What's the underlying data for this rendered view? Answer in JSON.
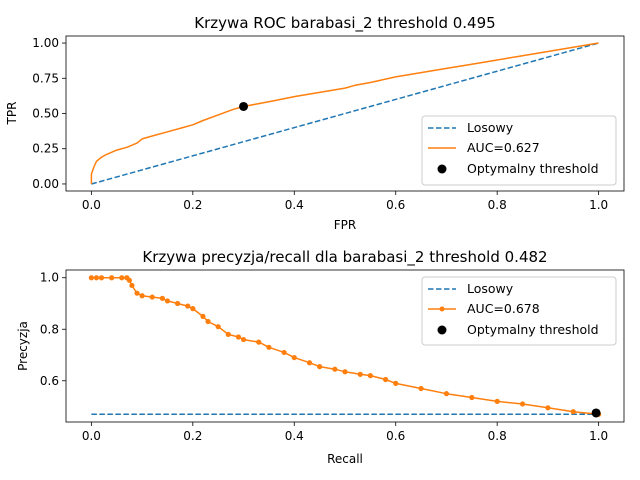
{
  "chart_data": [
    {
      "type": "line",
      "title": "Krzywa ROC barabasi_2 threshold  0.495",
      "xlabel": "FPR",
      "ylabel": "TPR",
      "xlim": [
        -0.05,
        1.05
      ],
      "ylim": [
        -0.05,
        1.05
      ],
      "xticks": [
        "0.0",
        "0.2",
        "0.4",
        "0.6",
        "0.8",
        "1.0"
      ],
      "yticks": [
        "0.00",
        "0.25",
        "0.50",
        "0.75",
        "1.00"
      ],
      "grid": false,
      "legend_position": "lower-right",
      "series": [
        {
          "name": "Losowy",
          "style": "dashed",
          "color": "#1f77b4",
          "x": [
            0,
            1
          ],
          "y": [
            0,
            1
          ]
        },
        {
          "name": "AUC=0.627",
          "style": "solid",
          "color": "#ff7f0e",
          "x": [
            0,
            0,
            0.005,
            0.01,
            0.02,
            0.03,
            0.05,
            0.07,
            0.09,
            0.1,
            0.12,
            0.15,
            0.18,
            0.2,
            0.22,
            0.25,
            0.28,
            0.3,
            0.33,
            0.36,
            0.4,
            0.45,
            0.5,
            0.52,
            0.55,
            0.6,
            0.65,
            0.7,
            0.75,
            0.8,
            0.85,
            0.9,
            0.95,
            1.0
          ],
          "y": [
            0,
            0.07,
            0.12,
            0.16,
            0.19,
            0.21,
            0.24,
            0.26,
            0.29,
            0.32,
            0.34,
            0.37,
            0.4,
            0.42,
            0.45,
            0.49,
            0.53,
            0.55,
            0.57,
            0.59,
            0.62,
            0.65,
            0.68,
            0.7,
            0.72,
            0.76,
            0.79,
            0.82,
            0.85,
            0.88,
            0.91,
            0.94,
            0.97,
            1.0
          ]
        }
      ],
      "point": {
        "name": "Optymalny threshold",
        "color": "#000000",
        "x": 0.3,
        "y": 0.55
      }
    },
    {
      "type": "line",
      "title": "Krzywa precyzja/recall dla barabasi_2 threshold  0.482",
      "xlabel": "Recall",
      "ylabel": "Precyzja",
      "xlim": [
        -0.05,
        1.05
      ],
      "ylim": [
        0.44,
        1.03
      ],
      "xticks": [
        "0.0",
        "0.2",
        "0.4",
        "0.6",
        "0.8",
        "1.0"
      ],
      "yticks": [
        "0.6",
        "0.8",
        "1.0"
      ],
      "grid": false,
      "legend_position": "top-right",
      "series": [
        {
          "name": "Losowy",
          "style": "dashed",
          "color": "#1f77b4",
          "x": [
            0,
            1
          ],
          "y": [
            0.47,
            0.47
          ]
        },
        {
          "name": "AUC=0.678",
          "style": "solid-dots",
          "color": "#ff7f0e",
          "x": [
            0,
            0.01,
            0.02,
            0.04,
            0.06,
            0.07,
            0.075,
            0.08,
            0.09,
            0.1,
            0.12,
            0.14,
            0.15,
            0.17,
            0.19,
            0.2,
            0.22,
            0.23,
            0.25,
            0.27,
            0.29,
            0.3,
            0.33,
            0.35,
            0.38,
            0.4,
            0.43,
            0.45,
            0.48,
            0.5,
            0.53,
            0.55,
            0.58,
            0.6,
            0.65,
            0.7,
            0.75,
            0.8,
            0.85,
            0.9,
            0.95,
            1.0
          ],
          "y": [
            1.0,
            1.0,
            1.0,
            1.0,
            1.0,
            1.0,
            0.99,
            0.97,
            0.94,
            0.93,
            0.925,
            0.92,
            0.91,
            0.9,
            0.89,
            0.88,
            0.85,
            0.83,
            0.81,
            0.78,
            0.77,
            0.76,
            0.75,
            0.73,
            0.71,
            0.69,
            0.67,
            0.655,
            0.645,
            0.635,
            0.625,
            0.62,
            0.605,
            0.59,
            0.57,
            0.55,
            0.535,
            0.52,
            0.51,
            0.495,
            0.48,
            0.47
          ]
        }
      ],
      "point": {
        "name": "Optymalny threshold",
        "color": "#000000",
        "x": 0.995,
        "y": 0.475
      }
    }
  ]
}
